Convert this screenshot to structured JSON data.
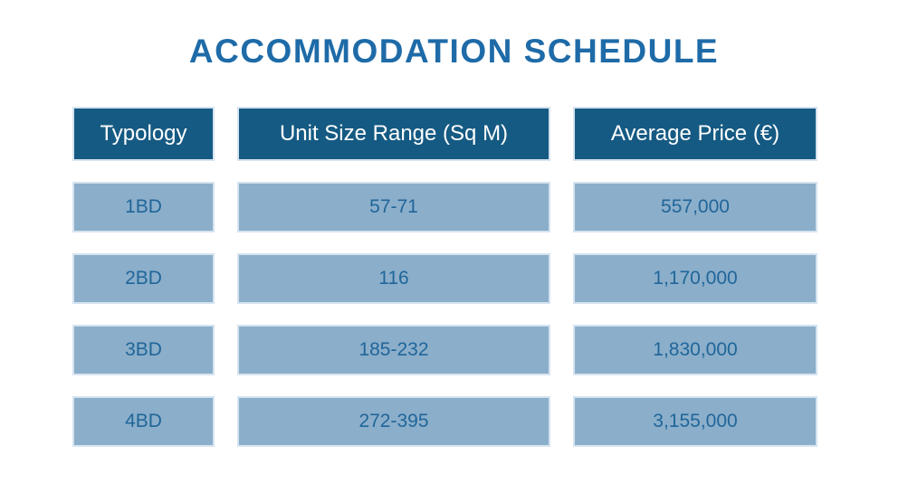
{
  "title": "ACCOMMODATION SCHEDULE",
  "colors": {
    "background": "#ffffff",
    "title": "#1E6BA8",
    "header_bg": "#155A83",
    "header_text": "#ffffff",
    "cell_bg": "#8BAECA",
    "cell_border": "#D5E3EF",
    "cell_text": "#20669A"
  },
  "table": {
    "columns": [
      "Typology",
      "Unit Size Range (Sq M)",
      "Average Price (€)"
    ],
    "rows": [
      [
        "1BD",
        "57-71",
        "557,000"
      ],
      [
        "2BD",
        "116",
        "1,170,000"
      ],
      [
        "3BD",
        "185-232",
        "1,830,000"
      ],
      [
        "4BD",
        "272-395",
        "3,155,000"
      ]
    ]
  },
  "chart_data": {
    "type": "table",
    "title": "ACCOMMODATION SCHEDULE",
    "columns": [
      "Typology",
      "Unit Size Range (Sq M)",
      "Average Price (€)"
    ],
    "rows": [
      {
        "typology": "1BD",
        "unit_size_range_sqm": "57-71",
        "average_price_eur": 557000
      },
      {
        "typology": "2BD",
        "unit_size_range_sqm": "116",
        "average_price_eur": 1170000
      },
      {
        "typology": "3BD",
        "unit_size_range_sqm": "185-232",
        "average_price_eur": 1830000
      },
      {
        "typology": "4BD",
        "unit_size_range_sqm": "272-395",
        "average_price_eur": 3155000
      }
    ]
  }
}
